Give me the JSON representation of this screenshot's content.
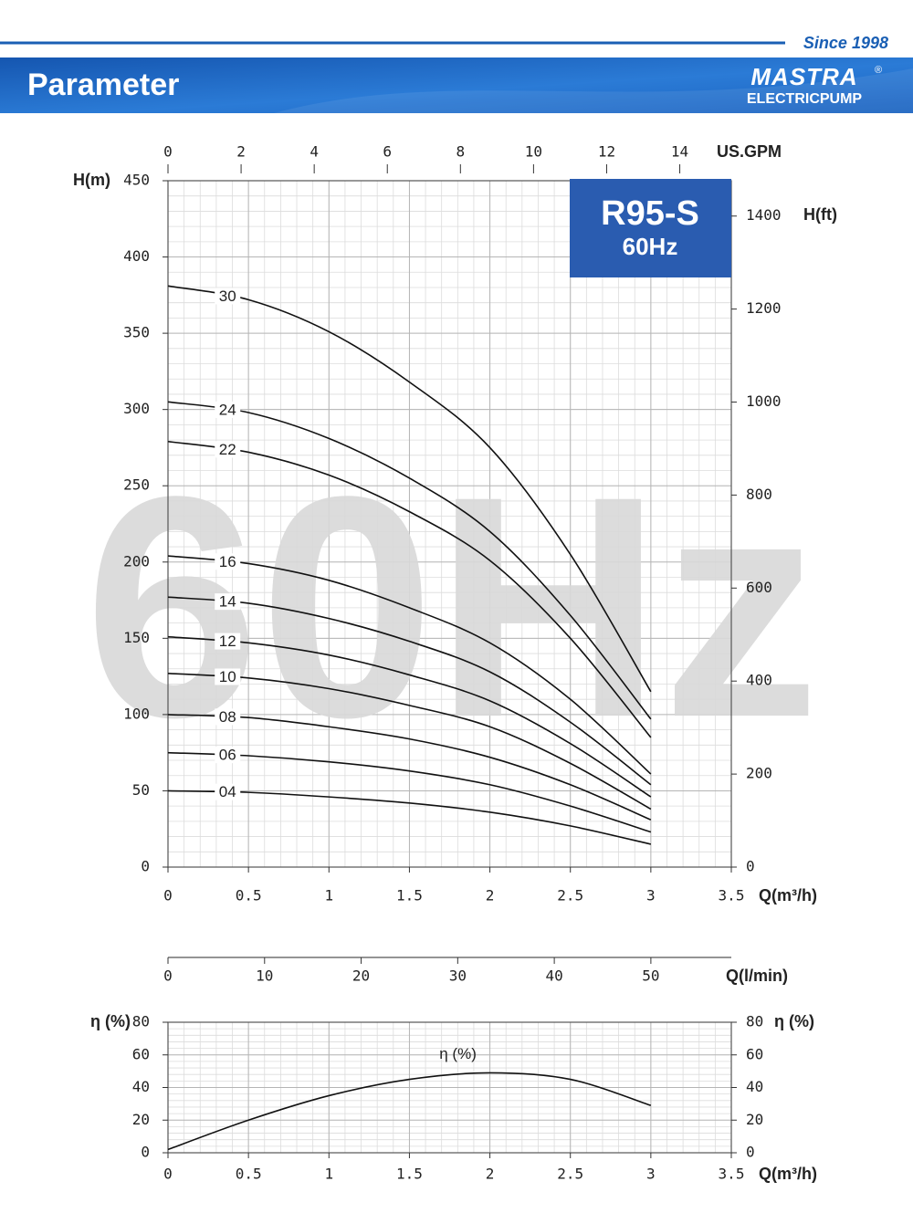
{
  "header": {
    "since": "Since 1998",
    "title": "Parameter",
    "logo": "MASTRA",
    "logo_sub": "ELECTRICPUMP",
    "registered": "®"
  },
  "chart_data": [
    {
      "type": "line",
      "model": "R95-S",
      "frequency": "60Hz",
      "watermark": "60Hz",
      "xlabel": "Q(m³/h)",
      "ylabel": "H(m)",
      "y2label": "H(ft)",
      "x2label": "US.GPM",
      "x3label": "Q(l/min)",
      "x": [
        0,
        0.5,
        1,
        1.5,
        2,
        2.5,
        3
      ],
      "xlim": [
        0,
        3.5
      ],
      "xticks": [
        0,
        0.5,
        1,
        1.5,
        2,
        2.5,
        3,
        3.5
      ],
      "ylim": [
        0,
        450
      ],
      "yticks": [
        0,
        50,
        100,
        150,
        200,
        250,
        300,
        350,
        400,
        450
      ],
      "y2lim": [
        0,
        1476
      ],
      "y2ticks": [
        0,
        200,
        400,
        600,
        800,
        1000,
        1200,
        1400
      ],
      "x2lim": [
        0,
        15.41
      ],
      "x2ticks": [
        0,
        2,
        4,
        6,
        8,
        10,
        12,
        14
      ],
      "x3lim": [
        0,
        58.33
      ],
      "x3ticks": [
        0,
        10,
        20,
        30,
        40,
        50
      ],
      "grid": true,
      "series": [
        {
          "name": "30",
          "color": "#111111",
          "values": [
            381,
            372,
            351,
            318,
            275,
            205,
            115
          ]
        },
        {
          "name": "24",
          "color": "#111111",
          "values": [
            305,
            298,
            281,
            255,
            220,
            165,
            97
          ]
        },
        {
          "name": "22",
          "color": "#111111",
          "values": [
            279,
            272,
            257,
            233,
            201,
            150,
            85
          ]
        },
        {
          "name": "16",
          "color": "#111111",
          "values": [
            204,
            199,
            188,
            170,
            147,
            110,
            61
          ]
        },
        {
          "name": "14",
          "color": "#111111",
          "values": [
            177,
            173,
            163,
            148,
            128,
            95,
            54
          ]
        },
        {
          "name": "12",
          "color": "#111111",
          "values": [
            151,
            147,
            139,
            126,
            109,
            81,
            46
          ]
        },
        {
          "name": "10",
          "color": "#111111",
          "values": [
            127,
            124,
            117,
            106,
            92,
            68,
            38
          ]
        },
        {
          "name": "08",
          "color": "#111111",
          "values": [
            100,
            98,
            92,
            84,
            72,
            54,
            31
          ]
        },
        {
          "name": "06",
          "color": "#111111",
          "values": [
            75,
            73,
            69,
            63,
            54,
            40,
            23
          ]
        },
        {
          "name": "04",
          "color": "#111111",
          "values": [
            50,
            49,
            46,
            42,
            36,
            27,
            15
          ]
        }
      ]
    },
    {
      "type": "line",
      "xlabel": "Q(m³/h)",
      "ylabel": "η (%)",
      "y2label": "η (%)",
      "x": [
        0,
        0.5,
        1,
        1.5,
        2,
        2.5,
        3
      ],
      "xlim": [
        0,
        3.5
      ],
      "xticks": [
        0,
        0.5,
        1,
        1.5,
        2,
        2.5,
        3,
        3.5
      ],
      "ylim": [
        0,
        80
      ],
      "yticks": [
        0,
        20,
        40,
        60,
        80
      ],
      "y2lim": [
        0,
        80
      ],
      "y2ticks": [
        0,
        20,
        40,
        60,
        80
      ],
      "grid": true,
      "series": [
        {
          "name": "η (%)",
          "color": "#111111",
          "values": [
            2,
            20,
            35,
            45,
            49,
            45,
            29
          ]
        }
      ]
    }
  ]
}
